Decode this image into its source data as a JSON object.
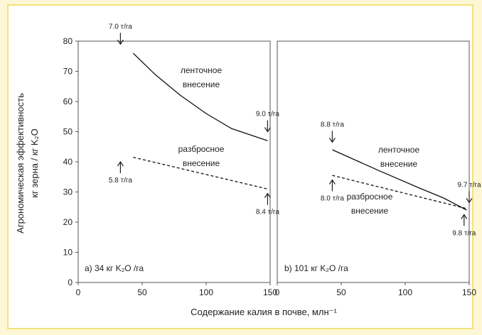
{
  "chart_data": [
    {
      "type": "line",
      "panel_label": "a) 34 кг K₂O /га",
      "xlim": [
        0,
        150
      ],
      "ylim": [
        0,
        80
      ],
      "xticks": [
        "0",
        "50",
        "100",
        "150"
      ],
      "yticks": [
        "0",
        "10",
        "20",
        "30",
        "40",
        "50",
        "60",
        "70",
        "80"
      ],
      "ylabel_line1": "Агрономическая эффективность",
      "ylabel_line2": "кг зерна / кг K₂O",
      "series": [
        {
          "label_line1": "ленточное",
          "label_line2": "внесение",
          "style": "solid",
          "x": [
            43,
            60,
            80,
            100,
            120,
            148
          ],
          "y": [
            76,
            69,
            62,
            56,
            51,
            47
          ]
        },
        {
          "label_line1": "разбросное",
          "label_line2": "внесение",
          "style": "dashed",
          "x": [
            43,
            148
          ],
          "y": [
            41.5,
            31
          ]
        }
      ],
      "annotations": [
        {
          "text": "7.0 т/га",
          "x": 33,
          "y": 79,
          "dir": "down"
        },
        {
          "text": "9.0 т/га",
          "x": 148,
          "y": 50,
          "dir": "down"
        },
        {
          "text": "5.8 т/га",
          "x": 33,
          "y": 40,
          "dir": "up"
        },
        {
          "text": "8.4 т/га",
          "x": 148,
          "y": 29.5,
          "dir": "up"
        }
      ]
    },
    {
      "type": "line",
      "panel_label": "b) 101 кг K₂O /га",
      "xlim": [
        0,
        150
      ],
      "ylim": [
        0,
        80
      ],
      "xticks": [
        "0",
        "50",
        "100",
        "150"
      ],
      "series": [
        {
          "label_line1": "ленточное",
          "label_line2": "внесение",
          "style": "solid",
          "x": [
            43,
            80,
            110,
            130,
            148
          ],
          "y": [
            44,
            37,
            31.5,
            28,
            24
          ]
        },
        {
          "label_line1": "разбросное",
          "label_line2": "внесение",
          "style": "dashed",
          "x": [
            43,
            148
          ],
          "y": [
            35.5,
            24.5
          ]
        }
      ],
      "annotations": [
        {
          "text": "8.8 т/га",
          "x": 43,
          "y": 46.5,
          "dir": "down"
        },
        {
          "text": "8.0 т/га",
          "x": 43,
          "y": 34,
          "dir": "up"
        },
        {
          "text": "9.7 т/га",
          "x": 150,
          "y": 26.5,
          "dir": "down"
        },
        {
          "text": "9.8 т/га",
          "x": 146,
          "y": 22.5,
          "dir": "up"
        }
      ]
    }
  ],
  "x_axis_title": "Содержание калия в почве, млн⁻¹"
}
